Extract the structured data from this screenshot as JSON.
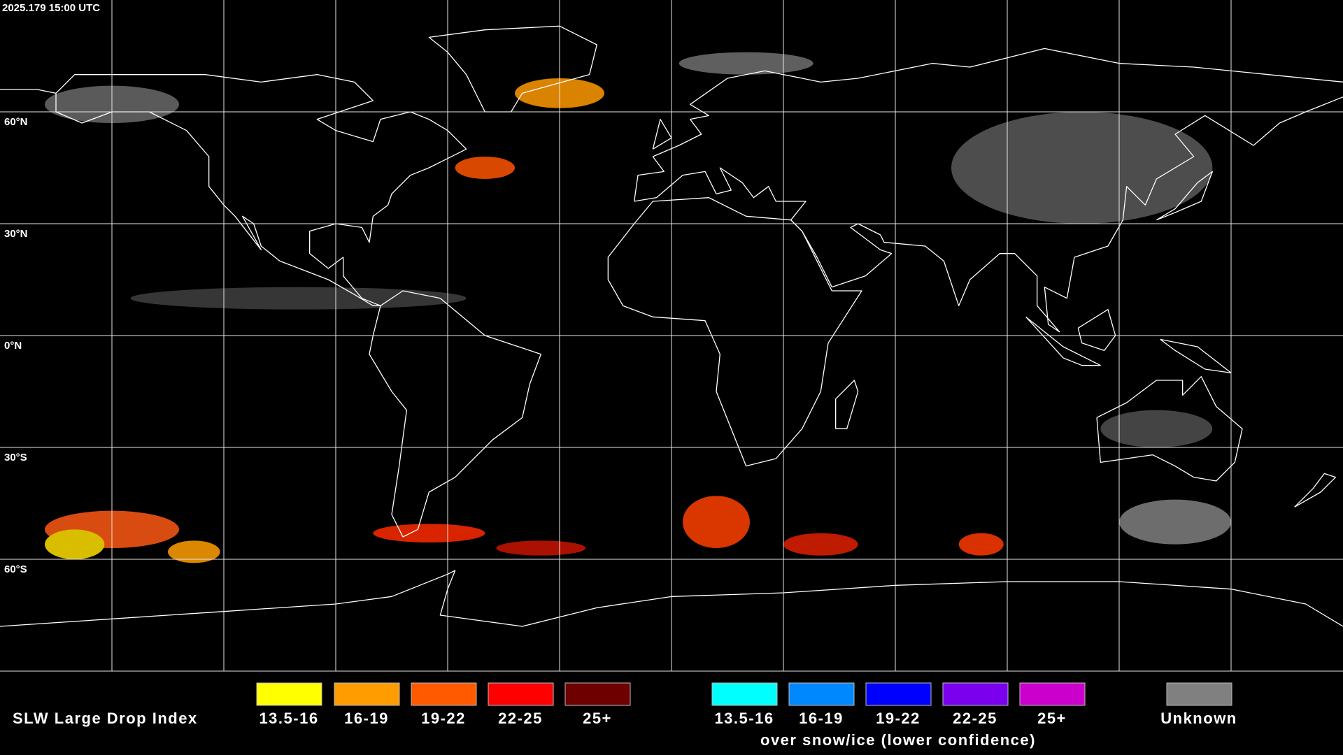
{
  "header": {
    "timestamp": "2025.179 15:00 UTC"
  },
  "map": {
    "latitude_labels": [
      "60°N",
      "30°N",
      "0°N",
      "30°S",
      "60°S"
    ]
  },
  "legend": {
    "title": "SLW Large Drop Index",
    "groups": [
      {
        "items": [
          {
            "label": "13.5-16",
            "color": "#ffff00"
          },
          {
            "label": "16-19",
            "color": "#ff9c00"
          },
          {
            "label": "19-22",
            "color": "#ff5a00"
          },
          {
            "label": "22-25",
            "color": "#ff0000"
          },
          {
            "label": "25+",
            "color": "#6e0000"
          }
        ]
      },
      {
        "items": [
          {
            "label": "13.5-16",
            "color": "#00ffff"
          },
          {
            "label": "16-19",
            "color": "#0088ff"
          },
          {
            "label": "19-22",
            "color": "#0000ff"
          },
          {
            "label": "22-25",
            "color": "#7a00ee"
          },
          {
            "label": "25+",
            "color": "#cc00cc"
          }
        ],
        "caption": "over snow/ice (lower confidence)"
      },
      {
        "items": [
          {
            "label": "Unknown",
            "color": "#808080"
          }
        ]
      }
    ]
  }
}
